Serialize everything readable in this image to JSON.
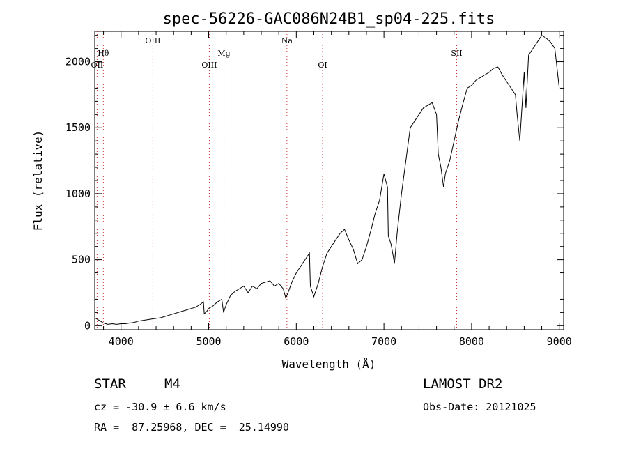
{
  "chart_data": {
    "type": "line",
    "title": "spec-56226-GAC086N24B1_sp04-225.fits",
    "xlabel": "Wavelength (Å)",
    "ylabel": "Flux (relative)",
    "xlim": [
      3700,
      9050
    ],
    "ylim": [
      -30,
      2230
    ],
    "xticks": [
      4000,
      5000,
      6000,
      7000,
      8000,
      9000
    ],
    "yticks": [
      0,
      500,
      1000,
      1500,
      2000
    ],
    "series": [
      {
        "x": [
          3700,
          3750,
          3800,
          3850,
          3900,
          3950,
          4000,
          4050,
          4100,
          4150,
          4200,
          4250,
          4300,
          4350,
          4400,
          4450,
          4500,
          4550,
          4600,
          4650,
          4700,
          4750,
          4800,
          4850,
          4900,
          4940,
          4950,
          4980,
          5000,
          5050,
          5100,
          5150,
          5170,
          5200,
          5250,
          5300,
          5350,
          5400,
          5450,
          5500,
          5550,
          5600,
          5650,
          5700,
          5750,
          5800,
          5850,
          5880,
          5900,
          5950,
          6000,
          6050,
          6100,
          6150,
          6160,
          6180,
          6200,
          6250,
          6300,
          6350,
          6400,
          6450,
          6500,
          6550,
          6600,
          6650,
          6700,
          6750,
          6800,
          6850,
          6900,
          6950,
          7000,
          7040,
          7050,
          7080,
          7100,
          7120,
          7150,
          7200,
          7250,
          7300,
          7350,
          7400,
          7450,
          7500,
          7550,
          7600,
          7620,
          7650,
          7680,
          7700,
          7750,
          7800,
          7850,
          7900,
          7950,
          8000,
          8050,
          8100,
          8150,
          8200,
          8250,
          8300,
          8350,
          8400,
          8450,
          8500,
          8520,
          8550,
          8600,
          8620,
          8650,
          8700,
          8750,
          8800,
          8850,
          8900,
          8950,
          9000
        ],
        "y": [
          60,
          40,
          20,
          10,
          15,
          10,
          15,
          15,
          20,
          25,
          35,
          40,
          45,
          50,
          55,
          60,
          70,
          80,
          90,
          100,
          110,
          120,
          130,
          140,
          160,
          180,
          90,
          110,
          130,
          150,
          180,
          200,
          100,
          160,
          230,
          260,
          280,
          300,
          250,
          300,
          280,
          320,
          330,
          340,
          300,
          320,
          280,
          210,
          240,
          330,
          400,
          450,
          500,
          550,
          300,
          260,
          220,
          320,
          450,
          550,
          600,
          650,
          700,
          730,
          650,
          580,
          470,
          500,
          600,
          720,
          850,
          950,
          1150,
          1050,
          680,
          620,
          550,
          470,
          700,
          1000,
          1250,
          1500,
          1550,
          1600,
          1650,
          1670,
          1690,
          1600,
          1300,
          1200,
          1050,
          1150,
          1250,
          1400,
          1550,
          1680,
          1800,
          1820,
          1860,
          1880,
          1900,
          1920,
          1950,
          1960,
          1900,
          1850,
          1800,
          1750,
          1600,
          1400,
          1920,
          1650,
          2050,
          2100,
          2150,
          2200,
          2180,
          2150,
          2100,
          1800
        ]
      }
    ],
    "lines": [
      {
        "x": 3798,
        "label": "Hθ",
        "tier": 1
      },
      {
        "x": 3727,
        "label": "OII",
        "tier": 2
      },
      {
        "x": 4363,
        "label": "OIII",
        "tier": 0
      },
      {
        "x": 5007,
        "label": "OIII",
        "tier": 2
      },
      {
        "x": 5175,
        "label": "Mg",
        "tier": 1
      },
      {
        "x": 5893,
        "label": "Na",
        "tier": 0
      },
      {
        "x": 6300,
        "label": "OI",
        "tier": 2
      },
      {
        "x": 7830,
        "label": "SII",
        "tier": 1
      }
    ]
  },
  "info": {
    "class": "STAR",
    "subclass": "M4",
    "survey": "LAMOST DR2",
    "cz": "cz = -30.9 ± 6.6 km/s",
    "obsdate": "Obs-Date: 20121025",
    "radec": "RA =  87.25968, DEC =  25.14990"
  }
}
